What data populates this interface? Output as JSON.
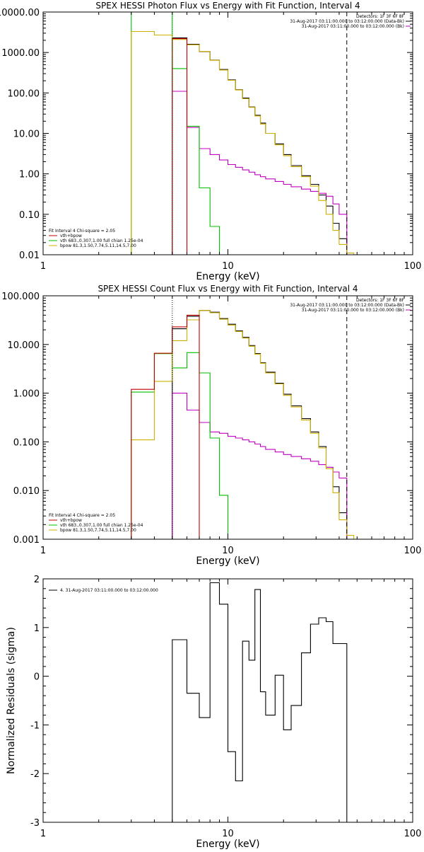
{
  "chart_data": [
    {
      "type": "line",
      "title": "SPEX HESSI Photon Flux vs Energy with Fit Function, Interval 4",
      "xlabel": "Energy (keV)",
      "ylabel": "",
      "x_scale": "log",
      "y_scale": "log",
      "xlim": [
        1,
        100
      ],
      "ylim": [
        0.01,
        10000
      ],
      "x_ticks": [
        {
          "v": 1,
          "label": "1"
        },
        {
          "v": 10,
          "label": "10"
        },
        {
          "v": 100,
          "label": "100"
        }
      ],
      "y_ticks": [
        {
          "v": 0.01,
          "label": "0.01"
        },
        {
          "v": 0.1,
          "label": "0.10"
        },
        {
          "v": 1,
          "label": "1.00"
        },
        {
          "v": 10,
          "label": "10.00"
        },
        {
          "v": 100,
          "label": "100.00"
        },
        {
          "v": 1000,
          "label": "1000.00"
        },
        {
          "v": 10000,
          "label": "10000.00"
        }
      ],
      "vlines": [
        {
          "x": 5,
          "style": "dotted",
          "color": "#00a000"
        },
        {
          "x": 44,
          "style": "dashed",
          "color": "#000000"
        }
      ],
      "legend_right": {
        "position": "top-right",
        "entries": [
          {
            "label": "Detectors: 1F 3F 6F 8F",
            "color": ""
          },
          {
            "label": "31-Aug-2017 03:11:00.000 to 03:12:00.000 (Data-Bk)",
            "color": "#000000"
          },
          {
            "label": "31-Aug-2017 03:11:00.000 to 03:12:00.000 (Bk)",
            "color": "#c000c0"
          }
        ]
      },
      "legend_left": {
        "position": "bottom-left",
        "entries": [
          {
            "label": "Fit Interval  4   Chi-square = 2.05",
            "color": ""
          },
          {
            "label": "vth+bpow",
            "color": "#c00000"
          },
          {
            "label": "vth 683.,0.307,1.00  full chian 1.25e-04",
            "color": "#00c000"
          },
          {
            "label": "bpow 81.3,1.50,7.74,5.11,14.5,7.00",
            "color": "#d0b000"
          }
        ]
      },
      "series": [
        {
          "role": "data-bk",
          "color": "#000000",
          "edges": [
            5,
            6,
            7,
            8,
            9,
            10,
            11,
            12,
            13,
            14,
            15,
            16,
            18,
            20,
            22,
            25,
            28,
            31,
            34,
            37,
            40,
            44
          ],
          "values": [
            2300,
            1600,
            1050,
            650,
            380,
            210,
            120,
            75,
            45,
            28,
            18,
            10,
            5.5,
            3.0,
            1.6,
            0.9,
            0.55,
            0.3,
            0.16,
            0.06,
            0.025
          ]
        },
        {
          "role": "background",
          "color": "#c000c0",
          "edges": [
            5,
            6,
            7,
            8,
            9,
            10,
            11,
            12,
            13,
            14,
            15,
            16,
            18,
            20,
            22,
            25,
            28,
            31,
            34,
            37,
            40,
            44
          ],
          "values": [
            110,
            14,
            4.2,
            3.0,
            2.2,
            1.7,
            1.45,
            1.25,
            1.1,
            0.95,
            0.85,
            0.75,
            0.65,
            0.55,
            0.48,
            0.42,
            0.37,
            0.33,
            0.28,
            0.18,
            0.1
          ]
        },
        {
          "role": "vth",
          "color": "#00c000",
          "edges": [
            3,
            4,
            5,
            6,
            7,
            8,
            9,
            10
          ],
          "values": [
            10000,
            10000,
            400,
            15,
            0.45,
            0.05,
            0.01
          ]
        },
        {
          "role": "bpow",
          "color": "#d0b000",
          "edges": [
            3,
            4,
            5,
            6,
            7,
            8,
            9,
            10,
            11,
            12,
            13,
            14,
            15,
            16,
            18,
            20,
            22,
            25,
            28,
            31,
            34,
            37,
            40,
            44,
            48
          ],
          "values": [
            3300,
            2700,
            2100,
            1550,
            1060,
            640,
            370,
            205,
            118,
            72,
            44,
            27,
            17,
            10,
            5.2,
            2.8,
            1.5,
            0.85,
            0.5,
            0.22,
            0.1,
            0.04,
            0.018,
            0.011
          ]
        },
        {
          "role": "vth+bpow",
          "color": "#c00000",
          "edges": [
            5,
            6
          ],
          "values": [
            2200
          ]
        }
      ]
    },
    {
      "type": "line",
      "title": "SPEX HESSI Count Flux vs Energy with Fit Function, Interval 4",
      "xlabel": "Energy (keV)",
      "ylabel": "",
      "x_scale": "log",
      "y_scale": "log",
      "xlim": [
        1,
        100
      ],
      "ylim": [
        0.001,
        100
      ],
      "x_ticks": [
        {
          "v": 1,
          "label": "1"
        },
        {
          "v": 10,
          "label": "10"
        },
        {
          "v": 100,
          "label": "100"
        }
      ],
      "y_ticks": [
        {
          "v": 0.001,
          "label": "0.001"
        },
        {
          "v": 0.01,
          "label": "0.010"
        },
        {
          "v": 0.1,
          "label": "0.100"
        },
        {
          "v": 1,
          "label": "1.000"
        },
        {
          "v": 10,
          "label": "10.000"
        },
        {
          "v": 100,
          "label": "100.000"
        }
      ],
      "vlines": [
        {
          "x": 5,
          "style": "dotted",
          "color": "#000000"
        },
        {
          "x": 44,
          "style": "dashed",
          "color": "#000000"
        }
      ],
      "legend_right": {
        "position": "top-right",
        "entries": [
          {
            "label": "Detectors: 1F 3F 6F 8F",
            "color": ""
          },
          {
            "label": "31-Aug-2017 03:11:00.000 to 03:12:00.000 (Data-Bk)",
            "color": "#000000"
          },
          {
            "label": "31-Aug-2017 03:11:00.000 to 03:12:00.000 (Bk)",
            "color": "#c000c0"
          }
        ]
      },
      "legend_left": {
        "position": "bottom-left",
        "entries": [
          {
            "label": "Fit Interval  4   Chi-square = 2.05",
            "color": ""
          },
          {
            "label": "vth+bpow",
            "color": "#c00000"
          },
          {
            "label": "vth 683.,0.307,1.00  full chian 1.25e-04",
            "color": "#00c000"
          },
          {
            "label": "bpow 81.3,1.50,7.74,5.11,14.5,7.00",
            "color": "#d0b000"
          }
        ]
      },
      "series": [
        {
          "role": "data-bk",
          "color": "#000000",
          "edges": [
            5,
            6,
            7,
            8,
            9,
            10,
            11,
            12,
            13,
            14,
            15,
            16,
            18,
            20,
            22,
            25,
            28,
            31,
            34,
            37,
            40,
            44
          ],
          "values": [
            21,
            38,
            50,
            46,
            34,
            26,
            19,
            14,
            9.5,
            6.5,
            4.2,
            2.7,
            1.6,
            0.95,
            0.55,
            0.3,
            0.16,
            0.08,
            0.03,
            0.012,
            0.0035
          ]
        },
        {
          "role": "background",
          "color": "#c000c0",
          "edges": [
            5,
            6,
            7,
            8,
            9,
            10,
            11,
            12,
            13,
            14,
            15,
            16,
            18,
            20,
            22,
            25,
            28,
            31,
            34,
            37,
            40,
            44
          ],
          "values": [
            1.0,
            0.45,
            0.25,
            0.16,
            0.15,
            0.13,
            0.12,
            0.11,
            0.1,
            0.09,
            0.08,
            0.07,
            0.062,
            0.055,
            0.05,
            0.045,
            0.04,
            0.034,
            0.03,
            0.024,
            0.018
          ]
        },
        {
          "role": "vth",
          "color": "#00c000",
          "edges": [
            3,
            4,
            5,
            6,
            7,
            8,
            9,
            10
          ],
          "values": [
            1.05,
            6.5,
            3.3,
            6.8,
            2.6,
            0.12,
            0.008
          ]
        },
        {
          "role": "bpow",
          "color": "#d0b000",
          "edges": [
            3,
            4,
            5,
            6,
            7,
            8,
            9,
            10,
            11,
            12,
            13,
            14,
            15,
            16,
            18,
            20,
            22,
            25,
            28,
            31,
            34,
            37,
            40,
            44,
            48
          ],
          "values": [
            0.11,
            1.75,
            12,
            32,
            50,
            45,
            33,
            25,
            18.5,
            13.5,
            9.2,
            6.3,
            4.1,
            2.6,
            1.55,
            0.9,
            0.52,
            0.28,
            0.15,
            0.075,
            0.028,
            0.009,
            0.0025,
            0.0012
          ]
        },
        {
          "role": "vth+bpow",
          "color": "#c00000",
          "edges": [
            3,
            4,
            5,
            6,
            7
          ],
          "values": [
            1.2,
            6.6,
            23,
            40
          ]
        }
      ]
    },
    {
      "type": "line",
      "title": "",
      "xlabel": "Energy (keV)",
      "ylabel": "Normalized Residuals (sigma)",
      "x_scale": "log",
      "y_scale": "linear",
      "xlim": [
        1,
        100
      ],
      "ylim": [
        -3,
        2
      ],
      "x_ticks": [
        {
          "v": 1,
          "label": "1"
        },
        {
          "v": 10,
          "label": "10"
        },
        {
          "v": 100,
          "label": "100"
        }
      ],
      "y_ticks": [
        {
          "v": -3,
          "label": "-3"
        },
        {
          "v": -2,
          "label": "-2"
        },
        {
          "v": -1,
          "label": "-1"
        },
        {
          "v": 0,
          "label": "0"
        },
        {
          "v": 1,
          "label": "1"
        },
        {
          "v": 2,
          "label": "2"
        }
      ],
      "legend_left": {
        "position": "top-left",
        "entries": [
          {
            "label": "4. 31-Aug-2017 03:11:00.000 to 03:12:00.000",
            "color": "#000000"
          }
        ]
      },
      "series": [
        {
          "role": "residuals",
          "color": "#000000",
          "edges": [
            5,
            6,
            7,
            8,
            9,
            10,
            11,
            12,
            13,
            14,
            15,
            16,
            18,
            20,
            22,
            25,
            28,
            31,
            34,
            37,
            40,
            44
          ],
          "values": [
            0.75,
            -0.35,
            -0.85,
            1.92,
            1.48,
            -1.55,
            -2.15,
            0.72,
            0.33,
            1.78,
            -0.32,
            -0.8,
            0.02,
            -1.1,
            -0.6,
            0.48,
            1.07,
            1.2,
            1.12,
            0.67,
            0.67
          ]
        }
      ]
    }
  ]
}
